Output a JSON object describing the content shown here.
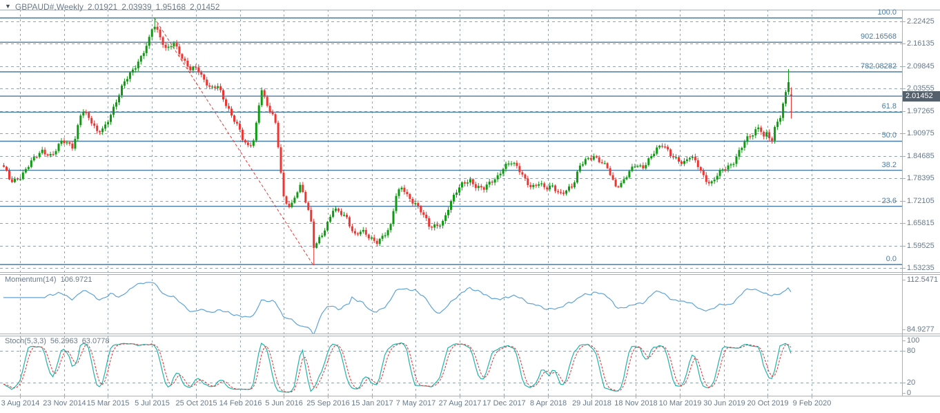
{
  "header": {
    "dropdown_icon": "▼",
    "symbol": "GBPAUD#,Weekly",
    "open": "2.01921",
    "high": "2.03939",
    "low": "1.95168",
    "close": "2.01452"
  },
  "colors": {
    "bull": "#0e9b12",
    "bear": "#f03431",
    "grid": "#93a3b2",
    "fib": "#4a7ba0",
    "trendline": "#e23a3a",
    "border": "#a8aeb5",
    "axis_text": "#68798a",
    "momentum_line": "#5ea3d8",
    "stoch_main": "#20b2aa",
    "stoch_signal": "#e23a3a",
    "price_tag_bg": "#55606d",
    "price_tag_text": "#ffffff"
  },
  "chart_data": {
    "type": "candlestick",
    "title": "GBPAUD#,Weekly",
    "bars_count": 288,
    "current_bar": {
      "open": 2.01921,
      "high": 2.03939,
      "low": 1.95168,
      "close": 2.01452
    },
    "price_axis": {
      "top_value": 2.22425,
      "step": 0.0629,
      "labels": [
        "2.22425",
        "2.16135",
        "2.09845",
        "2.03555",
        "1.97265",
        "1.90975",
        "1.84685",
        "1.78395",
        "1.72105",
        "1.65815",
        "1.59525",
        "1.53235"
      ],
      "current": "2.01452",
      "current_value": 2.01452
    },
    "time_axis": {
      "dates": [
        "3 Aug 2014",
        "23 Nov 2014",
        "15 Mar 2015",
        "5 Jul 2015",
        "25 Oct 2015",
        "14 Feb 2016",
        "5 Jun 2016",
        "25 Sep 2016",
        "15 Jan 2017",
        "7 May 2017",
        "27 Aug 2017",
        "17 Dec 2017",
        "8 Apr 2018",
        "29 Jul 2018",
        "18 Nov 2018",
        "10 Mar 2019",
        "30 Jun 2019",
        "20 Oct 2019",
        "9 Feb 2020"
      ]
    },
    "fibonacci": {
      "levels": [
        {
          "label": "100.0",
          "price": 2.2339
        },
        {
          "label": "902.16568",
          "price": 2.16568
        },
        {
          "label": "782.08282",
          "price": 2.08282
        },
        {
          "label": "61.8",
          "price": 1.9696
        },
        {
          "label": "50.0",
          "price": 1.888
        },
        {
          "label": "38.2",
          "price": 1.8063
        },
        {
          "label": "23.6",
          "price": 1.7053
        },
        {
          "label": "0.0",
          "price": 1.542
        }
      ],
      "trendline": {
        "from_t": 0.19,
        "from_price": 2.2339,
        "to_t": 0.394,
        "to_price": 1.5395
      }
    },
    "recent_spike": {
      "t": 0.9965,
      "high": 2.0904
    },
    "close_path_anchors": [
      [
        0.0,
        1.813
      ],
      [
        0.009,
        1.776
      ],
      [
        0.022,
        1.79
      ],
      [
        0.035,
        1.829
      ],
      [
        0.048,
        1.862
      ],
      [
        0.061,
        1.848
      ],
      [
        0.074,
        1.887
      ],
      [
        0.088,
        1.873
      ],
      [
        0.099,
        1.98
      ],
      [
        0.11,
        1.945
      ],
      [
        0.118,
        1.912
      ],
      [
        0.127,
        1.926
      ],
      [
        0.14,
        1.984
      ],
      [
        0.153,
        2.052
      ],
      [
        0.167,
        2.1
      ],
      [
        0.175,
        2.129
      ],
      [
        0.184,
        2.168
      ],
      [
        0.19,
        2.216
      ],
      [
        0.199,
        2.178
      ],
      [
        0.206,
        2.148
      ],
      [
        0.215,
        2.168
      ],
      [
        0.222,
        2.139
      ],
      [
        0.228,
        2.11
      ],
      [
        0.237,
        2.09
      ],
      [
        0.245,
        2.1
      ],
      [
        0.254,
        2.061
      ],
      [
        0.263,
        2.032
      ],
      [
        0.272,
        2.042
      ],
      [
        0.28,
        2.003
      ],
      [
        0.289,
        1.964
      ],
      [
        0.298,
        1.926
      ],
      [
        0.304,
        1.887
      ],
      [
        0.311,
        1.868
      ],
      [
        0.318,
        1.897
      ],
      [
        0.327,
        2.042
      ],
      [
        0.333,
        1.993
      ],
      [
        0.342,
        1.955
      ],
      [
        0.346,
        1.926
      ],
      [
        0.355,
        1.732
      ],
      [
        0.364,
        1.703
      ],
      [
        0.371,
        1.742
      ],
      [
        0.377,
        1.761
      ],
      [
        0.384,
        1.712
      ],
      [
        0.39,
        1.664
      ],
      [
        0.394,
        1.59
      ],
      [
        0.4,
        1.616
      ],
      [
        0.409,
        1.645
      ],
      [
        0.418,
        1.693
      ],
      [
        0.427,
        1.688
      ],
      [
        0.436,
        1.674
      ],
      [
        0.445,
        1.625
      ],
      [
        0.454,
        1.635
      ],
      [
        0.464,
        1.616
      ],
      [
        0.473,
        1.606
      ],
      [
        0.482,
        1.625
      ],
      [
        0.491,
        1.645
      ],
      [
        0.498,
        1.732
      ],
      [
        0.506,
        1.761
      ],
      [
        0.514,
        1.732
      ],
      [
        0.523,
        1.713
      ],
      [
        0.532,
        1.683
      ],
      [
        0.541,
        1.645
      ],
      [
        0.55,
        1.654
      ],
      [
        0.558,
        1.664
      ],
      [
        0.565,
        1.703
      ],
      [
        0.574,
        1.742
      ],
      [
        0.583,
        1.771
      ],
      [
        0.592,
        1.781
      ],
      [
        0.6,
        1.761
      ],
      [
        0.609,
        1.752
      ],
      [
        0.618,
        1.771
      ],
      [
        0.627,
        1.79
      ],
      [
        0.635,
        1.819
      ],
      [
        0.644,
        1.829
      ],
      [
        0.653,
        1.81
      ],
      [
        0.662,
        1.781
      ],
      [
        0.67,
        1.761
      ],
      [
        0.679,
        1.771
      ],
      [
        0.688,
        1.752
      ],
      [
        0.697,
        1.761
      ],
      [
        0.706,
        1.742
      ],
      [
        0.714,
        1.752
      ],
      [
        0.723,
        1.761
      ],
      [
        0.732,
        1.819
      ],
      [
        0.74,
        1.839
      ],
      [
        0.749,
        1.848
      ],
      [
        0.758,
        1.829
      ],
      [
        0.767,
        1.81
      ],
      [
        0.776,
        1.761
      ],
      [
        0.784,
        1.771
      ],
      [
        0.793,
        1.8
      ],
      [
        0.802,
        1.819
      ],
      [
        0.811,
        1.81
      ],
      [
        0.819,
        1.839
      ],
      [
        0.828,
        1.868
      ],
      [
        0.837,
        1.877
      ],
      [
        0.846,
        1.848
      ],
      [
        0.854,
        1.839
      ],
      [
        0.863,
        1.829
      ],
      [
        0.872,
        1.848
      ],
      [
        0.881,
        1.819
      ],
      [
        0.89,
        1.781
      ],
      [
        0.898,
        1.771
      ],
      [
        0.907,
        1.8
      ],
      [
        0.916,
        1.81
      ],
      [
        0.925,
        1.819
      ],
      [
        0.933,
        1.858
      ],
      [
        0.942,
        1.897
      ],
      [
        0.951,
        1.906
      ],
      [
        0.96,
        1.926
      ],
      [
        0.965,
        1.897
      ],
      [
        0.97,
        1.916
      ],
      [
        0.975,
        1.887
      ],
      [
        0.981,
        1.945
      ],
      [
        0.986,
        1.955
      ],
      [
        0.991,
        2.0
      ],
      [
        0.996,
        2.06
      ],
      [
        1.0,
        2.0145
      ]
    ],
    "indicators": {
      "momentum": {
        "label": "Momentum(14)",
        "value": "106.9721",
        "period": 14,
        "scale": {
          "max": 112.5471,
          "min": 84.9277
        },
        "scale_labels": [
          "112.5471",
          "84.9277"
        ]
      },
      "stochastic": {
        "label": "Stoch(5,3,3)",
        "main_value": "56.2963",
        "signal_value": "63.0778",
        "params": [
          5,
          3,
          3
        ],
        "scale": {
          "max": 100,
          "min": 0
        },
        "scale_labels": [
          "100",
          "80",
          "20",
          "0"
        ],
        "level_lines": [
          80,
          20
        ]
      }
    }
  }
}
